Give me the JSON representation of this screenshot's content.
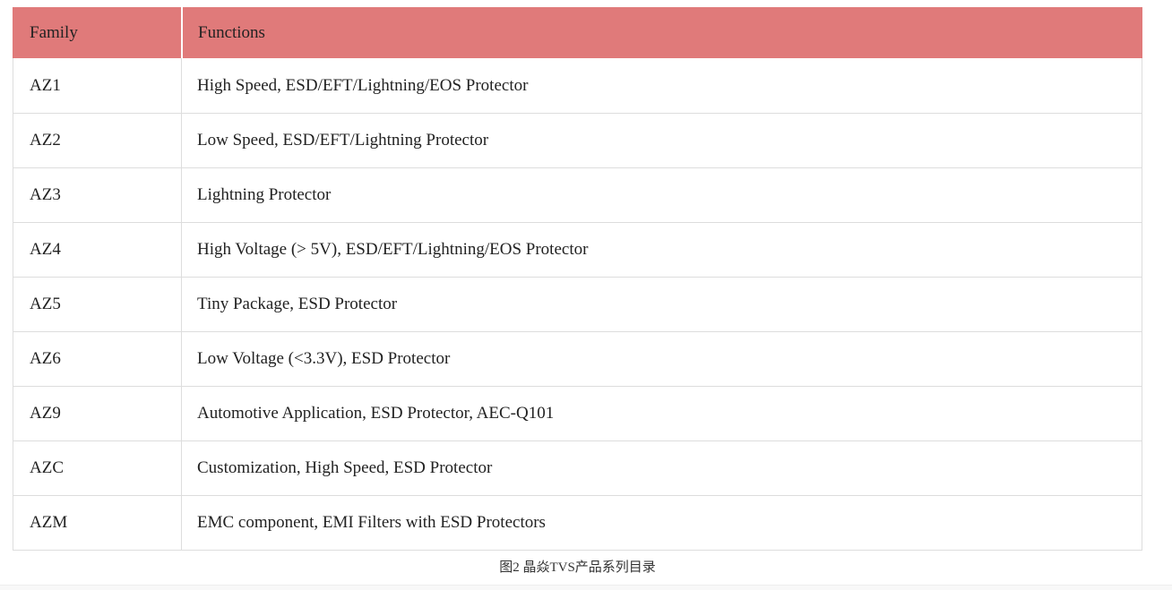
{
  "table": {
    "columns": [
      "Family",
      "Functions"
    ],
    "rows": [
      {
        "family": "AZ1",
        "functions": "High Speed, ESD/EFT/Lightning/EOS Protector"
      },
      {
        "family": "AZ2",
        "functions": "Low Speed, ESD/EFT/Lightning Protector"
      },
      {
        "family": "AZ3",
        "functions": "Lightning Protector"
      },
      {
        "family": "AZ4",
        "functions": "High Voltage (> 5V), ESD/EFT/Lightning/EOS Protector"
      },
      {
        "family": "AZ5",
        "functions": "Tiny Package, ESD Protector"
      },
      {
        "family": "AZ6",
        "functions": "Low Voltage (<3.3V), ESD Protector"
      },
      {
        "family": "AZ9",
        "functions": "Automotive Application, ESD Protector, AEC-Q101"
      },
      {
        "family": "AZC",
        "functions": "Customization, High Speed, ESD Protector"
      },
      {
        "family": "AZM",
        "functions": "EMC component, EMI Filters with ESD Protectors"
      }
    ]
  },
  "caption": "图2 晶焱TVS产品系列目录",
  "colors": {
    "header_bg": "#e07a7a",
    "border": "#dddddd",
    "text": "#222222"
  }
}
